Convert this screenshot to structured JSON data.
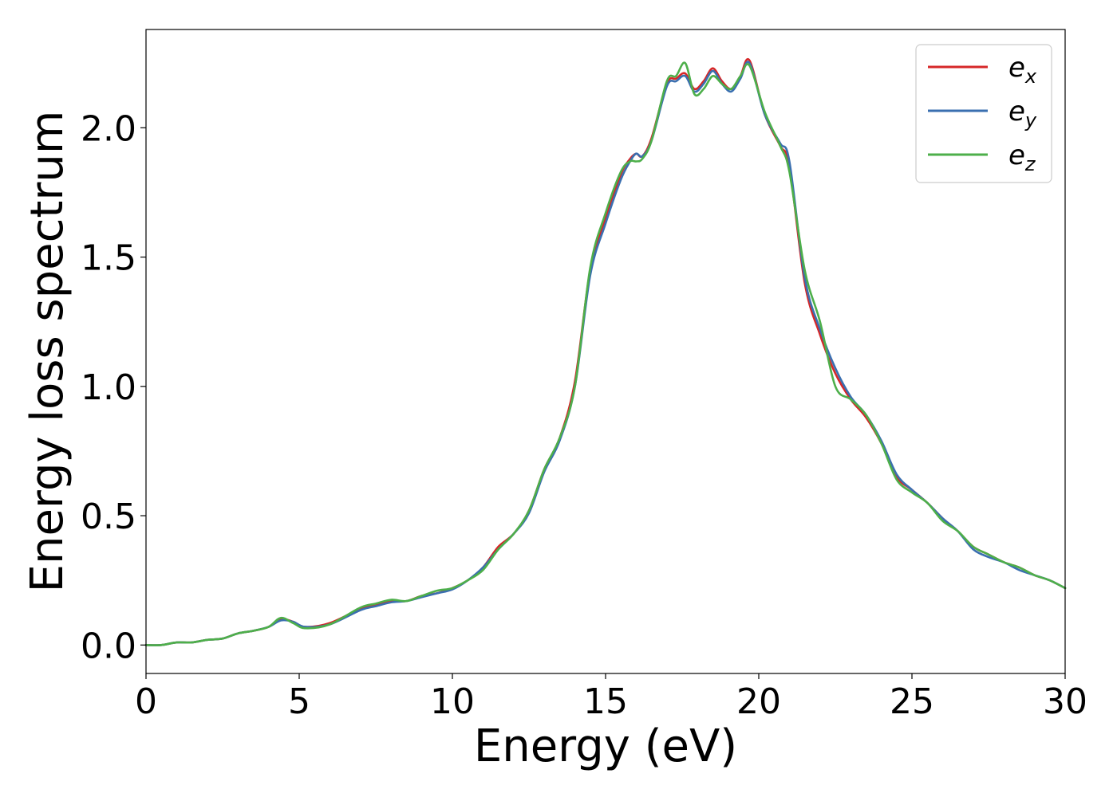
{
  "chart_data": {
    "type": "line",
    "xlabel": "Energy (eV)",
    "ylabel": "Energy loss spectrum",
    "xlim": [
      0,
      30
    ],
    "ylim": [
      -0.11,
      2.38
    ],
    "xticks": [
      0,
      5,
      10,
      15,
      20,
      25,
      30
    ],
    "xtick_labels": [
      "0",
      "5",
      "10",
      "15",
      "20",
      "25",
      "30"
    ],
    "yticks": [
      0.0,
      0.5,
      1.0,
      1.5,
      2.0
    ],
    "ytick_labels": [
      "0.0",
      "0.5",
      "1.0",
      "1.5",
      "2.0"
    ],
    "grid": false,
    "legend_position": "top-right",
    "series": [
      {
        "name": "e_x",
        "legend_base": "e",
        "legend_sub": "x",
        "color": "#d62728",
        "x": [
          0,
          0.5,
          1,
          1.5,
          2,
          2.5,
          3,
          3.5,
          4,
          4.4,
          4.8,
          5.2,
          6,
          7,
          7.5,
          8,
          8.5,
          9,
          9.5,
          10,
          10.5,
          11,
          11.5,
          12,
          12.5,
          13,
          13.5,
          14,
          14.5,
          15,
          15.5,
          15.8,
          16,
          16.2,
          16.5,
          17,
          17.3,
          17.6,
          17.9,
          18.2,
          18.5,
          18.8,
          19.1,
          19.4,
          19.7,
          20.2,
          20.7,
          21,
          21.5,
          22,
          22.5,
          23,
          23.5,
          24,
          24.5,
          25,
          25.5,
          26,
          26.5,
          27,
          27.5,
          28,
          28.5,
          29,
          29.5,
          30
        ],
        "y": [
          0.0,
          0.0,
          0.01,
          0.01,
          0.02,
          0.025,
          0.045,
          0.055,
          0.07,
          0.1,
          0.09,
          0.07,
          0.085,
          0.14,
          0.155,
          0.17,
          0.17,
          0.19,
          0.2,
          0.22,
          0.25,
          0.3,
          0.38,
          0.43,
          0.52,
          0.68,
          0.8,
          1.02,
          1.45,
          1.65,
          1.82,
          1.88,
          1.9,
          1.89,
          1.96,
          2.17,
          2.19,
          2.21,
          2.15,
          2.18,
          2.23,
          2.18,
          2.15,
          2.2,
          2.26,
          2.05,
          1.93,
          1.85,
          1.4,
          1.2,
          1.05,
          0.95,
          0.88,
          0.78,
          0.65,
          0.6,
          0.55,
          0.49,
          0.44,
          0.38,
          0.35,
          0.32,
          0.3,
          0.27,
          0.25,
          0.22
        ]
      },
      {
        "name": "e_y",
        "legend_base": "e",
        "legend_sub": "y",
        "color": "#3a6fb0",
        "x": [
          0,
          0.5,
          1,
          1.5,
          2,
          2.5,
          3,
          3.5,
          4,
          4.4,
          4.8,
          5.2,
          6,
          7,
          7.5,
          8,
          8.5,
          9,
          9.5,
          10,
          10.5,
          11,
          11.5,
          12,
          12.5,
          13,
          13.5,
          14,
          14.5,
          15,
          15.5,
          15.8,
          16,
          16.2,
          16.5,
          17,
          17.3,
          17.6,
          17.9,
          18.2,
          18.5,
          18.8,
          19.1,
          19.4,
          19.7,
          20.2,
          20.7,
          21,
          21.5,
          22,
          22.5,
          23,
          23.5,
          24,
          24.5,
          25,
          25.5,
          26,
          26.5,
          27,
          27.5,
          28,
          28.5,
          29,
          29.5,
          30
        ],
        "y": [
          0.0,
          0.0,
          0.01,
          0.01,
          0.02,
          0.025,
          0.045,
          0.055,
          0.07,
          0.095,
          0.09,
          0.07,
          0.08,
          0.135,
          0.15,
          0.165,
          0.17,
          0.185,
          0.2,
          0.215,
          0.25,
          0.3,
          0.37,
          0.43,
          0.51,
          0.67,
          0.79,
          1.0,
          1.43,
          1.63,
          1.8,
          1.87,
          1.9,
          1.89,
          1.95,
          2.16,
          2.18,
          2.2,
          2.14,
          2.17,
          2.22,
          2.17,
          2.14,
          2.19,
          2.25,
          2.05,
          1.94,
          1.87,
          1.42,
          1.22,
          1.07,
          0.96,
          0.89,
          0.79,
          0.66,
          0.6,
          0.55,
          0.49,
          0.44,
          0.37,
          0.34,
          0.32,
          0.29,
          0.27,
          0.25,
          0.22
        ]
      },
      {
        "name": "e_z",
        "legend_base": "e",
        "legend_sub": "z",
        "color": "#4daf4a",
        "x": [
          0,
          0.5,
          1,
          1.5,
          2,
          2.5,
          3,
          3.5,
          4,
          4.4,
          4.8,
          5.2,
          6,
          7,
          7.5,
          8,
          8.5,
          9,
          9.5,
          10,
          10.5,
          11,
          11.5,
          12,
          12.5,
          13,
          13.5,
          14,
          14.5,
          15,
          15.5,
          15.8,
          16,
          16.2,
          16.5,
          17,
          17.3,
          17.6,
          17.9,
          18.2,
          18.5,
          18.8,
          19.1,
          19.4,
          19.7,
          20.2,
          20.7,
          21,
          21.5,
          22,
          22.5,
          23,
          23.5,
          24,
          24.5,
          25,
          25.5,
          26,
          26.5,
          27,
          27.5,
          28,
          28.5,
          29,
          29.5,
          30
        ],
        "y": [
          0.0,
          0.0,
          0.01,
          0.01,
          0.02,
          0.025,
          0.045,
          0.055,
          0.07,
          0.105,
          0.085,
          0.065,
          0.08,
          0.145,
          0.16,
          0.175,
          0.17,
          0.19,
          0.21,
          0.22,
          0.25,
          0.29,
          0.37,
          0.43,
          0.52,
          0.68,
          0.8,
          1.0,
          1.46,
          1.67,
          1.83,
          1.87,
          1.87,
          1.88,
          1.95,
          2.18,
          2.2,
          2.25,
          2.13,
          2.15,
          2.2,
          2.17,
          2.15,
          2.2,
          2.24,
          2.06,
          1.93,
          1.83,
          1.45,
          1.25,
          1.0,
          0.95,
          0.89,
          0.78,
          0.64,
          0.59,
          0.55,
          0.48,
          0.44,
          0.38,
          0.35,
          0.32,
          0.3,
          0.27,
          0.25,
          0.22
        ]
      }
    ]
  }
}
